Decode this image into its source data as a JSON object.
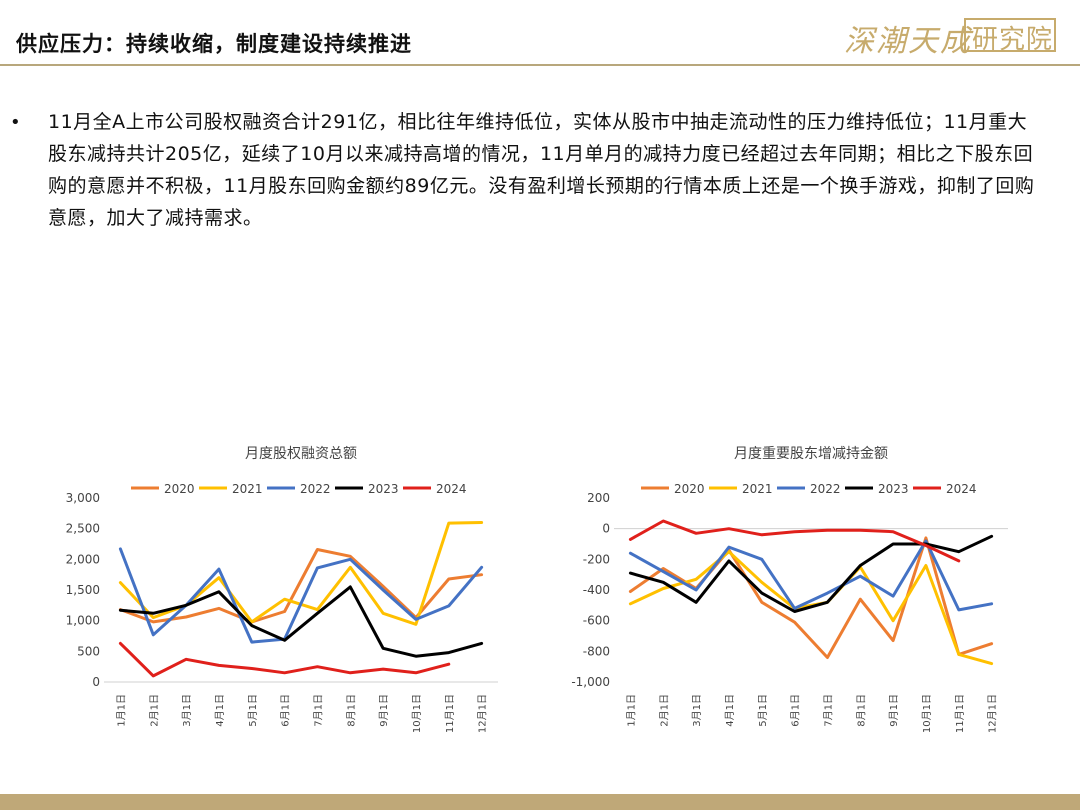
{
  "header": {
    "title": "供应压力：持续收缩，制度建设持续推进",
    "logo_text": "深潮天成",
    "logo_stamp": "研究院",
    "accent_color": "#b8a77c"
  },
  "content": {
    "bullet": "•",
    "paragraph": "11月全A上市公司股权融资合计291亿，相比往年维持低位，实体从股市中抽走流动性的压力维持低位；11月重大股东减持共计205亿，延续了10月以来减持高增的情况，11月单月的减持力度已经超过去年同期；相比之下股东回购的意愿并不积极，11月股东回购金额约89亿元。没有盈利增长预期的行情本质上还是一个换手游戏，抑制了回购意愿，加大了减持需求。"
  },
  "chart_data": [
    {
      "type": "line",
      "title": "月度股权融资总额",
      "categories": [
        "1月1日",
        "2月1日",
        "3月1日",
        "4月1日",
        "5月1日",
        "6月1日",
        "7月1日",
        "8月1日",
        "9月1日",
        "10月1日",
        "11月1日",
        "12月1日"
      ],
      "ylim": [
        0,
        3000
      ],
      "yticks": [
        0,
        500,
        1000,
        1500,
        2000,
        2500,
        3000
      ],
      "ytick_labels": [
        "0",
        "500",
        "1,000",
        "1,500",
        "2,000",
        "2,500",
        "3,000"
      ],
      "legend_position": "top",
      "series": [
        {
          "name": "2020",
          "color": "#ed7d31",
          "values": [
            1180,
            980,
            1060,
            1200,
            980,
            1150,
            2160,
            2050,
            1560,
            1050,
            1680,
            1750
          ]
        },
        {
          "name": "2021",
          "color": "#ffc000",
          "values": [
            1620,
            1050,
            1250,
            1700,
            980,
            1350,
            1180,
            1870,
            1120,
            940,
            2590,
            2600
          ]
        },
        {
          "name": "2022",
          "color": "#4472c4",
          "values": [
            2170,
            770,
            1250,
            1840,
            650,
            700,
            1860,
            2000,
            1500,
            1020,
            1240,
            1870
          ]
        },
        {
          "name": "2023",
          "color": "#000000",
          "values": [
            1170,
            1120,
            1250,
            1470,
            920,
            680,
            1120,
            1550,
            550,
            420,
            480,
            630
          ]
        },
        {
          "name": "2024",
          "color": "#e0201b",
          "values": [
            630,
            100,
            370,
            270,
            220,
            150,
            250,
            150,
            210,
            150,
            290,
            null
          ]
        }
      ]
    },
    {
      "type": "line",
      "title": "月度重要股东增减持金额",
      "categories": [
        "1月1日",
        "2月1日",
        "3月1日",
        "4月1日",
        "5月1日",
        "6月1日",
        "7月1日",
        "8月1日",
        "9月1日",
        "10月1日",
        "11月1日",
        "12月1日"
      ],
      "ylim": [
        -1000,
        200
      ],
      "yticks": [
        -1000,
        -800,
        -600,
        -400,
        -200,
        0,
        200
      ],
      "ytick_labels": [
        "-1,000",
        "-800",
        "-600",
        "-400",
        "-200",
        "0",
        "200"
      ],
      "legend_position": "top",
      "series": [
        {
          "name": "2020",
          "color": "#ed7d31",
          "values": [
            -410,
            -260,
            -390,
            -140,
            -480,
            -610,
            -840,
            -460,
            -730,
            -60,
            -820,
            -750
          ]
        },
        {
          "name": "2021",
          "color": "#ffc000",
          "values": [
            -490,
            -390,
            -330,
            -150,
            -350,
            -520,
            -480,
            -250,
            -600,
            -240,
            -820,
            -880
          ]
        },
        {
          "name": "2022",
          "color": "#4472c4",
          "values": [
            -160,
            -280,
            -400,
            -120,
            -200,
            -520,
            -420,
            -310,
            -440,
            -80,
            -530,
            -490
          ]
        },
        {
          "name": "2023",
          "color": "#000000",
          "values": [
            -290,
            -350,
            -480,
            -210,
            -420,
            -540,
            -480,
            -240,
            -100,
            -100,
            -150,
            -50
          ]
        },
        {
          "name": "2024",
          "color": "#e0201b",
          "values": [
            -70,
            50,
            -30,
            0,
            -40,
            -20,
            -10,
            -10,
            -20,
            -110,
            -210,
            null
          ]
        }
      ]
    }
  ]
}
